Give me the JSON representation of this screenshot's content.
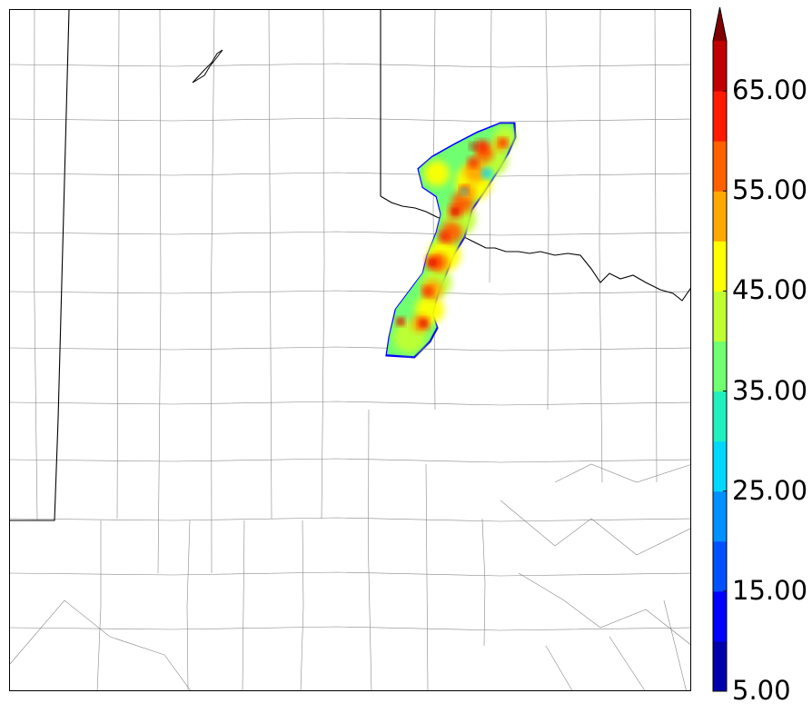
{
  "colorbar": {
    "levels": [
      5,
      10,
      15,
      20,
      25,
      30,
      35,
      40,
      45,
      50,
      55,
      60,
      65,
      70
    ],
    "colors": [
      "#0000aa",
      "#0000ff",
      "#0050ff",
      "#0090ff",
      "#00d8ff",
      "#20f0c0",
      "#70ff70",
      "#c0ff30",
      "#ffff00",
      "#ffa800",
      "#ff6000",
      "#ff1a00",
      "#c00000"
    ],
    "extend_color": "#800000",
    "tick_labels": [
      "5.00",
      "15.00",
      "25.00",
      "35.00",
      "45.00",
      "55.00",
      "65.00"
    ],
    "extend": "max"
  },
  "map": {
    "features": [
      "state-borders",
      "county-borders",
      "red-river",
      "lake"
    ],
    "field": "reflectivity-like contoured field, values 5 to 65+"
  }
}
